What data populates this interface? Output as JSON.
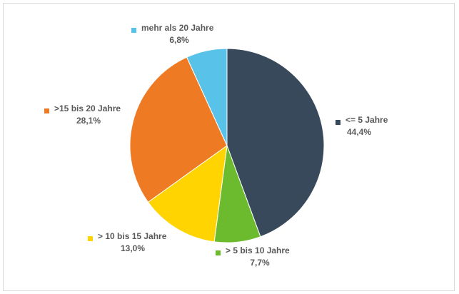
{
  "chart_data": {
    "type": "pie",
    "start_angle_deg": 0,
    "direction": "clockwise",
    "slices": [
      {
        "label": "<= 5 Jahre",
        "value_text": "44,4%",
        "value": 44.4,
        "color": "#37495a"
      },
      {
        "label": "> 5 bis 10 Jahre",
        "value_text": "7,7%",
        "value": 7.7,
        "color": "#6cbb2e"
      },
      {
        "label": "> 10 bis 15 Jahre",
        "value_text": "13,0%",
        "value": 13.0,
        "color": "#ffd400"
      },
      {
        "label": ">15 bis 20 Jahre",
        "value_text": "28,1%",
        "value": 28.1,
        "color": "#ef7a24"
      },
      {
        "label": "mehr als 20 Jahre",
        "value_text": "6,8%",
        "value": 6.8,
        "color": "#59c2e8"
      }
    ]
  }
}
